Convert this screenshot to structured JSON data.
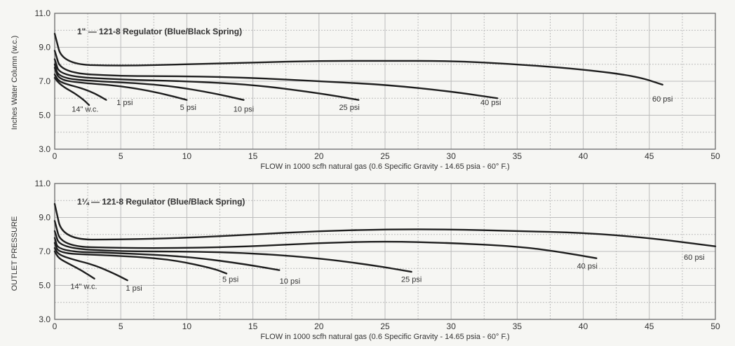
{
  "ylabel_top": "Inches Water Column (w.c.)",
  "ylabel_bottom": "OUTLET PRESSURE",
  "colors": {
    "curve": "#1e1e1e",
    "grid": "#bcbcbc",
    "background": "#f6f6f3"
  },
  "chart_data": [
    {
      "type": "line",
      "title": "1\" — 121-8 Regulator (Blue/Black Spring)",
      "xlabel": "FLOW in 1000 scfh natural gas (0.6 Specific Gravity - 14.65 psia - 60° F.)",
      "xlim": [
        0,
        50
      ],
      "ylim": [
        3.0,
        11.0
      ],
      "xticks": [
        "0",
        "5",
        "10",
        "15",
        "20",
        "25",
        "30",
        "35",
        "40",
        "45",
        "50"
      ],
      "yticks": [
        "11.0",
        "9.0",
        "7.0",
        "5.0",
        "3.0"
      ],
      "series": [
        {
          "name": "14\" w.c.",
          "x": [
            0,
            0.3,
            0.8,
            1.5,
            2.2,
            2.6
          ],
          "y": [
            7.2,
            6.9,
            6.6,
            6.3,
            5.9,
            5.6
          ]
        },
        {
          "name": "1 psi",
          "x": [
            0,
            0.3,
            1,
            2,
            3,
            3.9
          ],
          "y": [
            7.4,
            7.0,
            6.8,
            6.6,
            6.3,
            5.9
          ]
        },
        {
          "name": "5 psi",
          "x": [
            0,
            0.3,
            2,
            4,
            6,
            8,
            10
          ],
          "y": [
            7.8,
            7.1,
            6.9,
            6.8,
            6.6,
            6.3,
            5.9
          ]
        },
        {
          "name": "10 psi",
          "x": [
            0,
            0.3,
            3,
            6,
            9,
            12,
            14.3
          ],
          "y": [
            8.0,
            7.2,
            7.0,
            6.9,
            6.7,
            6.3,
            5.9
          ]
        },
        {
          "name": "25 psi",
          "x": [
            0,
            0.4,
            5,
            10,
            15,
            20,
            23
          ],
          "y": [
            8.3,
            7.3,
            7.1,
            7.0,
            6.8,
            6.3,
            5.9
          ]
        },
        {
          "name": "40 psi",
          "x": [
            0,
            0.5,
            5,
            10,
            15,
            20,
            25,
            30,
            33.5
          ],
          "y": [
            8.8,
            7.5,
            7.3,
            7.3,
            7.2,
            7.0,
            6.8,
            6.4,
            6.0
          ]
        },
        {
          "name": "60 psi",
          "x": [
            0,
            0.6,
            5,
            10,
            15,
            20,
            25,
            30,
            35,
            40,
            44,
            46
          ],
          "y": [
            9.8,
            8.0,
            7.9,
            8.0,
            8.1,
            8.2,
            8.2,
            8.2,
            8.0,
            7.7,
            7.3,
            6.8
          ]
        }
      ],
      "annotations": [
        {
          "text": "14\" w.c.",
          "x": 2.3,
          "y": 5.2
        },
        {
          "text": "1 psi",
          "x": 5.3,
          "y": 5.6
        },
        {
          "text": "5 psi",
          "x": 10.1,
          "y": 5.3
        },
        {
          "text": "10 psi",
          "x": 14.3,
          "y": 5.2
        },
        {
          "text": "25 psi",
          "x": 22.3,
          "y": 5.3
        },
        {
          "text": "40 psi",
          "x": 33.0,
          "y": 5.6
        },
        {
          "text": "60 psi",
          "x": 46.0,
          "y": 5.8
        }
      ]
    },
    {
      "type": "line",
      "title": "1¼ — 121-8 Regulator (Blue/Black Spring)",
      "xlabel": "FLOW in 1000 scfh natural gas (0.6 Specific Gravity - 14.65 psia - 60° F.)",
      "xlim": [
        0,
        50
      ],
      "ylim": [
        3.0,
        11.0
      ],
      "xticks": [
        "0",
        "5",
        "10",
        "15",
        "20",
        "25",
        "30",
        "35",
        "40",
        "45",
        "50"
      ],
      "yticks": [
        "11.0",
        "9.0",
        "7.0",
        "5.0",
        "3.0"
      ],
      "series": [
        {
          "name": "14\" w.c.",
          "x": [
            0,
            0.3,
            1,
            2,
            3
          ],
          "y": [
            7.0,
            6.6,
            6.3,
            5.9,
            5.4
          ]
        },
        {
          "name": "1 psi",
          "x": [
            0,
            0.3,
            1.5,
            3,
            4.5,
            5.5
          ],
          "y": [
            7.2,
            6.8,
            6.5,
            6.2,
            5.7,
            5.3
          ]
        },
        {
          "name": "5 psi",
          "x": [
            0,
            0.3,
            3,
            6,
            9,
            12,
            13
          ],
          "y": [
            7.5,
            6.9,
            6.8,
            6.7,
            6.5,
            6.0,
            5.7
          ]
        },
        {
          "name": "10 psi",
          "x": [
            0,
            0.3,
            5,
            10,
            14,
            17
          ],
          "y": [
            7.8,
            7.0,
            6.9,
            6.7,
            6.3,
            5.9
          ]
        },
        {
          "name": "25 psi",
          "x": [
            0,
            0.4,
            5,
            10,
            15,
            20,
            24,
            27
          ],
          "y": [
            8.2,
            7.2,
            7.0,
            7.0,
            6.9,
            6.6,
            6.2,
            5.8
          ]
        },
        {
          "name": "40 psi",
          "x": [
            0,
            0.5,
            5,
            10,
            15,
            20,
            25,
            30,
            35,
            38,
            41
          ],
          "y": [
            8.8,
            7.3,
            7.2,
            7.2,
            7.3,
            7.5,
            7.6,
            7.5,
            7.3,
            7.0,
            6.6
          ]
        },
        {
          "name": "60 psi",
          "x": [
            0,
            0.6,
            5,
            10,
            15,
            20,
            25,
            30,
            35,
            40,
            45,
            50
          ],
          "y": [
            9.8,
            7.7,
            7.7,
            7.8,
            8.0,
            8.2,
            8.3,
            8.3,
            8.2,
            8.1,
            7.8,
            7.3
          ]
        }
      ],
      "annotations": [
        {
          "text": "14\" w.c.",
          "x": 2.2,
          "y": 4.8
        },
        {
          "text": "1 psi",
          "x": 6.0,
          "y": 4.7
        },
        {
          "text": "5 psi",
          "x": 13.3,
          "y": 5.2
        },
        {
          "text": "10 psi",
          "x": 17.8,
          "y": 5.1
        },
        {
          "text": "25 psi",
          "x": 27.0,
          "y": 5.2
        },
        {
          "text": "40 psi",
          "x": 40.3,
          "y": 6.0
        },
        {
          "text": "60 psi",
          "x": 48.4,
          "y": 6.5
        }
      ]
    }
  ]
}
